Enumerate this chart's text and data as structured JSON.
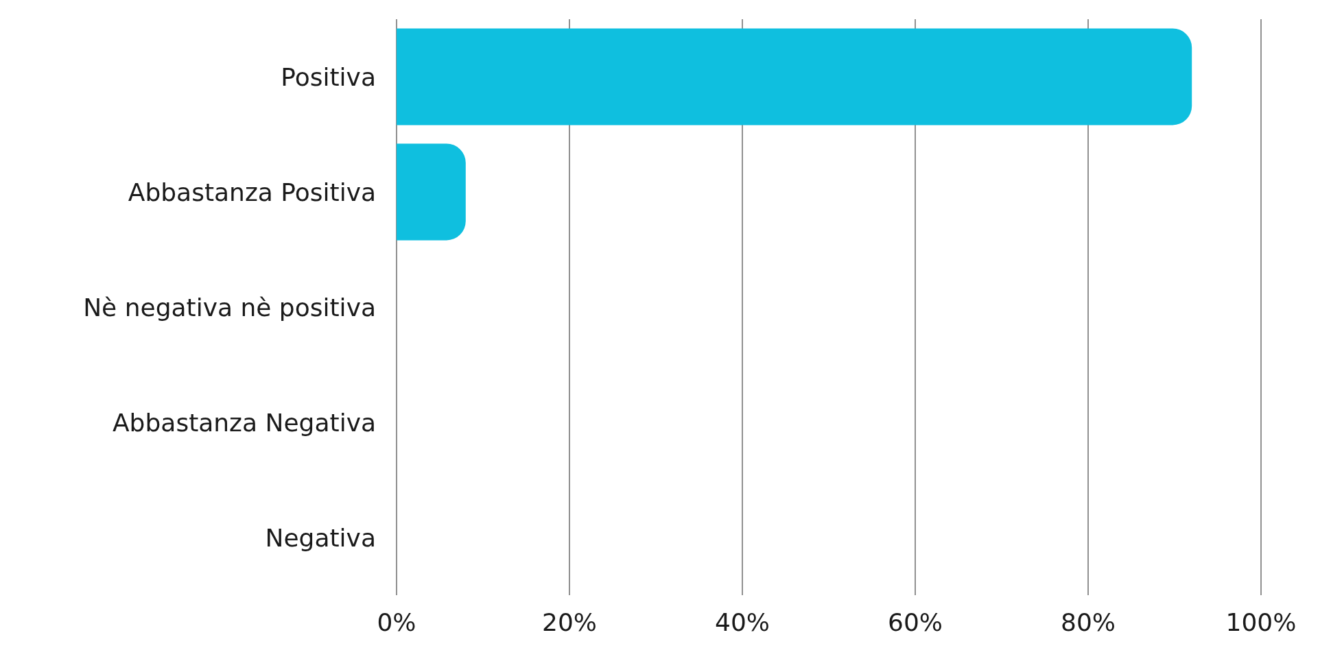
{
  "chart_data": {
    "type": "bar",
    "orientation": "horizontal",
    "categories": [
      "Positiva",
      "Abbastanza  Positiva",
      "Nè negativa nè positiva",
      "Abbastanza Negativa",
      "Negativa"
    ],
    "values": [
      92,
      8,
      0,
      0,
      0
    ],
    "color": "#0fbfdf",
    "xlim": [
      0,
      100
    ],
    "xticks": [
      {
        "value": 0,
        "label": "0%"
      },
      {
        "value": 20,
        "label": "20%"
      },
      {
        "value": 40,
        "label": "40%"
      },
      {
        "value": 60,
        "label": "60%"
      },
      {
        "value": 80,
        "label": "80%"
      },
      {
        "value": 100,
        "label": "100%"
      }
    ],
    "grid": "x"
  }
}
